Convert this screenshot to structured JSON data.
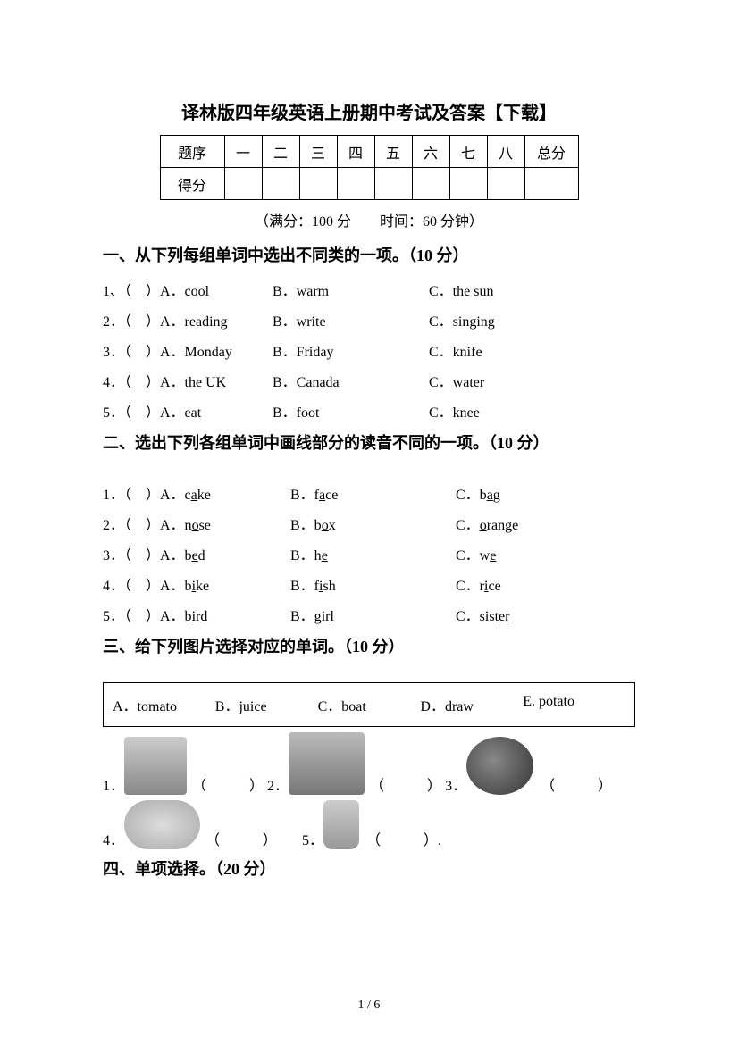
{
  "title": "译林版四年级英语上册期中考试及答案【下载】",
  "score_table": {
    "row1_label": "题序",
    "cols": [
      "一",
      "二",
      "三",
      "四",
      "五",
      "六",
      "七",
      "八"
    ],
    "total_label": "总分",
    "row2_label": "得分"
  },
  "meta": "（满分：100 分　　时间：60 分钟）",
  "section1": {
    "header": "一、从下列每组单词中选出不同类的一项。（10 分）",
    "items": [
      {
        "num": "1、（　）A．cool",
        "b": "B．warm",
        "c": "C．the sun"
      },
      {
        "num": "2．（　）A．reading",
        "b": "B．write",
        "c": "C．singing"
      },
      {
        "num": "3．（　）A．Monday",
        "b": "B．Friday",
        "c": "C．knife"
      },
      {
        "num": "4．（　）A．the UK",
        "b": "B．Canada",
        "c": "C．water"
      },
      {
        "num": "5．（　）A．eat",
        "b": "B．foot",
        "c": "C．knee"
      }
    ]
  },
  "section2": {
    "header": "二、选出下列各组单词中画线部分的读音不同的一项。（10 分）",
    "items": [
      {
        "num": "1．（　）A．",
        "a_pre": "c",
        "a_u": "a",
        "a_post": "ke",
        "b_pre": "B．f",
        "b_u": "a",
        "b_post": "ce",
        "c_pre": "C．b",
        "c_u": "a",
        "c_post": "g"
      },
      {
        "num": "2．（　）A．",
        "a_pre": "n",
        "a_u": "o",
        "a_post": "se",
        "b_pre": "B．b",
        "b_u": "o",
        "b_post": "x",
        "c_pre": "C．",
        "c_u": "o",
        "c_post": "range"
      },
      {
        "num": "3．（　）A．",
        "a_pre": "b",
        "a_u": "e",
        "a_post": "d",
        "b_pre": "B．h",
        "b_u": "e",
        "b_post": "",
        "c_pre": "C．w",
        "c_u": "e",
        "c_post": ""
      },
      {
        "num": "4．（　）A．",
        "a_pre": "b",
        "a_u": "i",
        "a_post": "ke",
        "b_pre": "B．f",
        "b_u": "i",
        "b_post": "sh",
        "c_pre": "C．r",
        "c_u": "i",
        "c_post": "ce"
      },
      {
        "num": "5．（　）A．",
        "a_pre": "b",
        "a_u": "ir",
        "a_post": "d",
        "b_pre": "B．g",
        "b_u": "ir",
        "b_post": "l",
        "c_pre": "C．sist",
        "c_u": "er",
        "c_post": ""
      }
    ]
  },
  "section3": {
    "header": "三、给下列图片选择对应的单词。（10 分）",
    "options": {
      "a": "A．tomato",
      "b": "B．juice",
      "c": "C．boat",
      "d": "D．draw",
      "e": "E. potato"
    },
    "row1": {
      "n1": "1．",
      "b1": "（　　　）",
      "n2": "2．",
      "b2": "（　　　）",
      "n3": "3．",
      "b3": "（　　　）"
    },
    "row2": {
      "n4": "4．",
      "b4": "（　　　）",
      "n5": "5．",
      "b5": "（　　　）."
    }
  },
  "section4": {
    "header": "四、单项选择。（20 分）"
  },
  "page_num": "1 / 6"
}
